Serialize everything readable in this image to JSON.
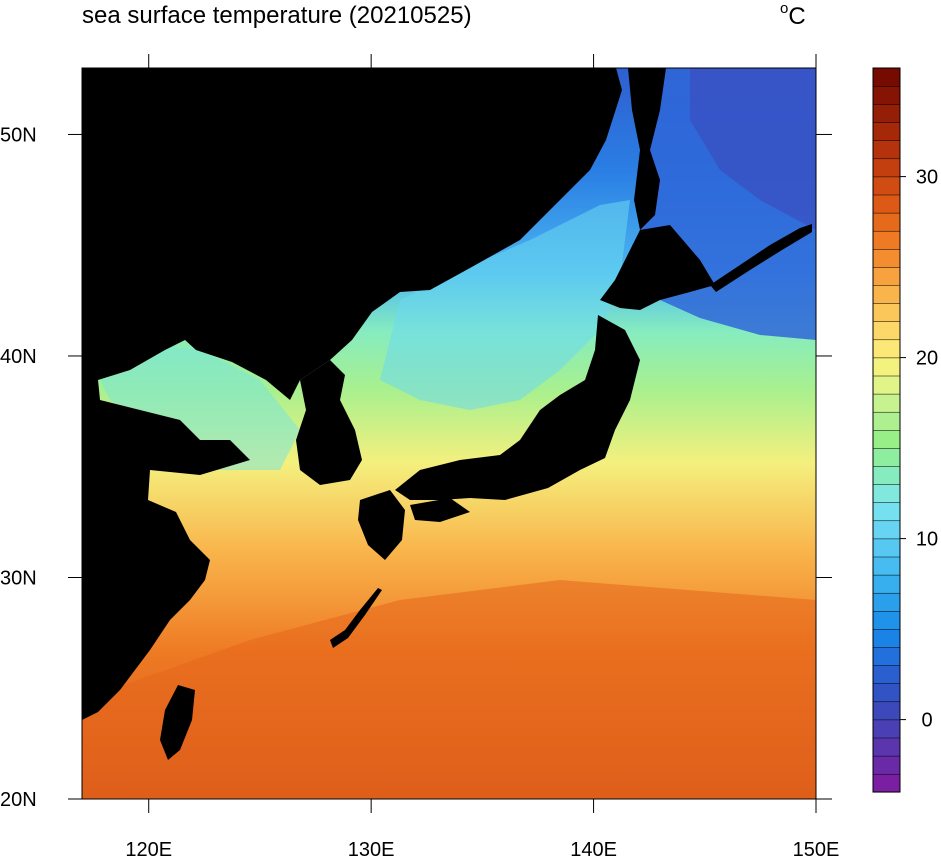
{
  "title": "sea surface temperature (20210525)",
  "unit": {
    "degree": "o",
    "letter": "C"
  },
  "map": {
    "lon_range": [
      117,
      150
    ],
    "lat_range": [
      20,
      53
    ],
    "lon_ticks": [
      {
        "value": 120,
        "label": "120E"
      },
      {
        "value": 130,
        "label": "130E"
      },
      {
        "value": 140,
        "label": "140E"
      },
      {
        "value": 150,
        "label": "150E"
      }
    ],
    "lat_ticks": [
      {
        "value": 20,
        "label": "20N"
      },
      {
        "value": 30,
        "label": "30N"
      },
      {
        "value": 40,
        "label": "40N"
      },
      {
        "value": 50,
        "label": "50N"
      }
    ],
    "land_color": "#000000"
  },
  "colorbar": {
    "min": -4,
    "max": 36,
    "tick_values": [
      0,
      10,
      20,
      30
    ],
    "tick_labels": [
      "0",
      "10",
      "20",
      "30"
    ],
    "colors": [
      "#7b1fa2",
      "#6a2aa8",
      "#5a35ae",
      "#4a3fb5",
      "#3d49bb",
      "#3253c4",
      "#2a5fd0",
      "#2170dc",
      "#1b82e6",
      "#1f92ea",
      "#2aa0ec",
      "#37aeee",
      "#47bcf0",
      "#56c8f2",
      "#66d4f2",
      "#74e0f0",
      "#80e8dc",
      "#86ecc0",
      "#8eeea0",
      "#98ef88",
      "#aef090",
      "#c6f290",
      "#e0f488",
      "#f4f27e",
      "#fbe876",
      "#fcd868",
      "#fbc75a",
      "#f9b54c",
      "#f7a23e",
      "#f38d30",
      "#ee7a24",
      "#e66a1c",
      "#dc5a16",
      "#d04c12",
      "#c33f0f",
      "#b5330c",
      "#a52809",
      "#951e06",
      "#851404",
      "#760b02"
    ]
  }
}
